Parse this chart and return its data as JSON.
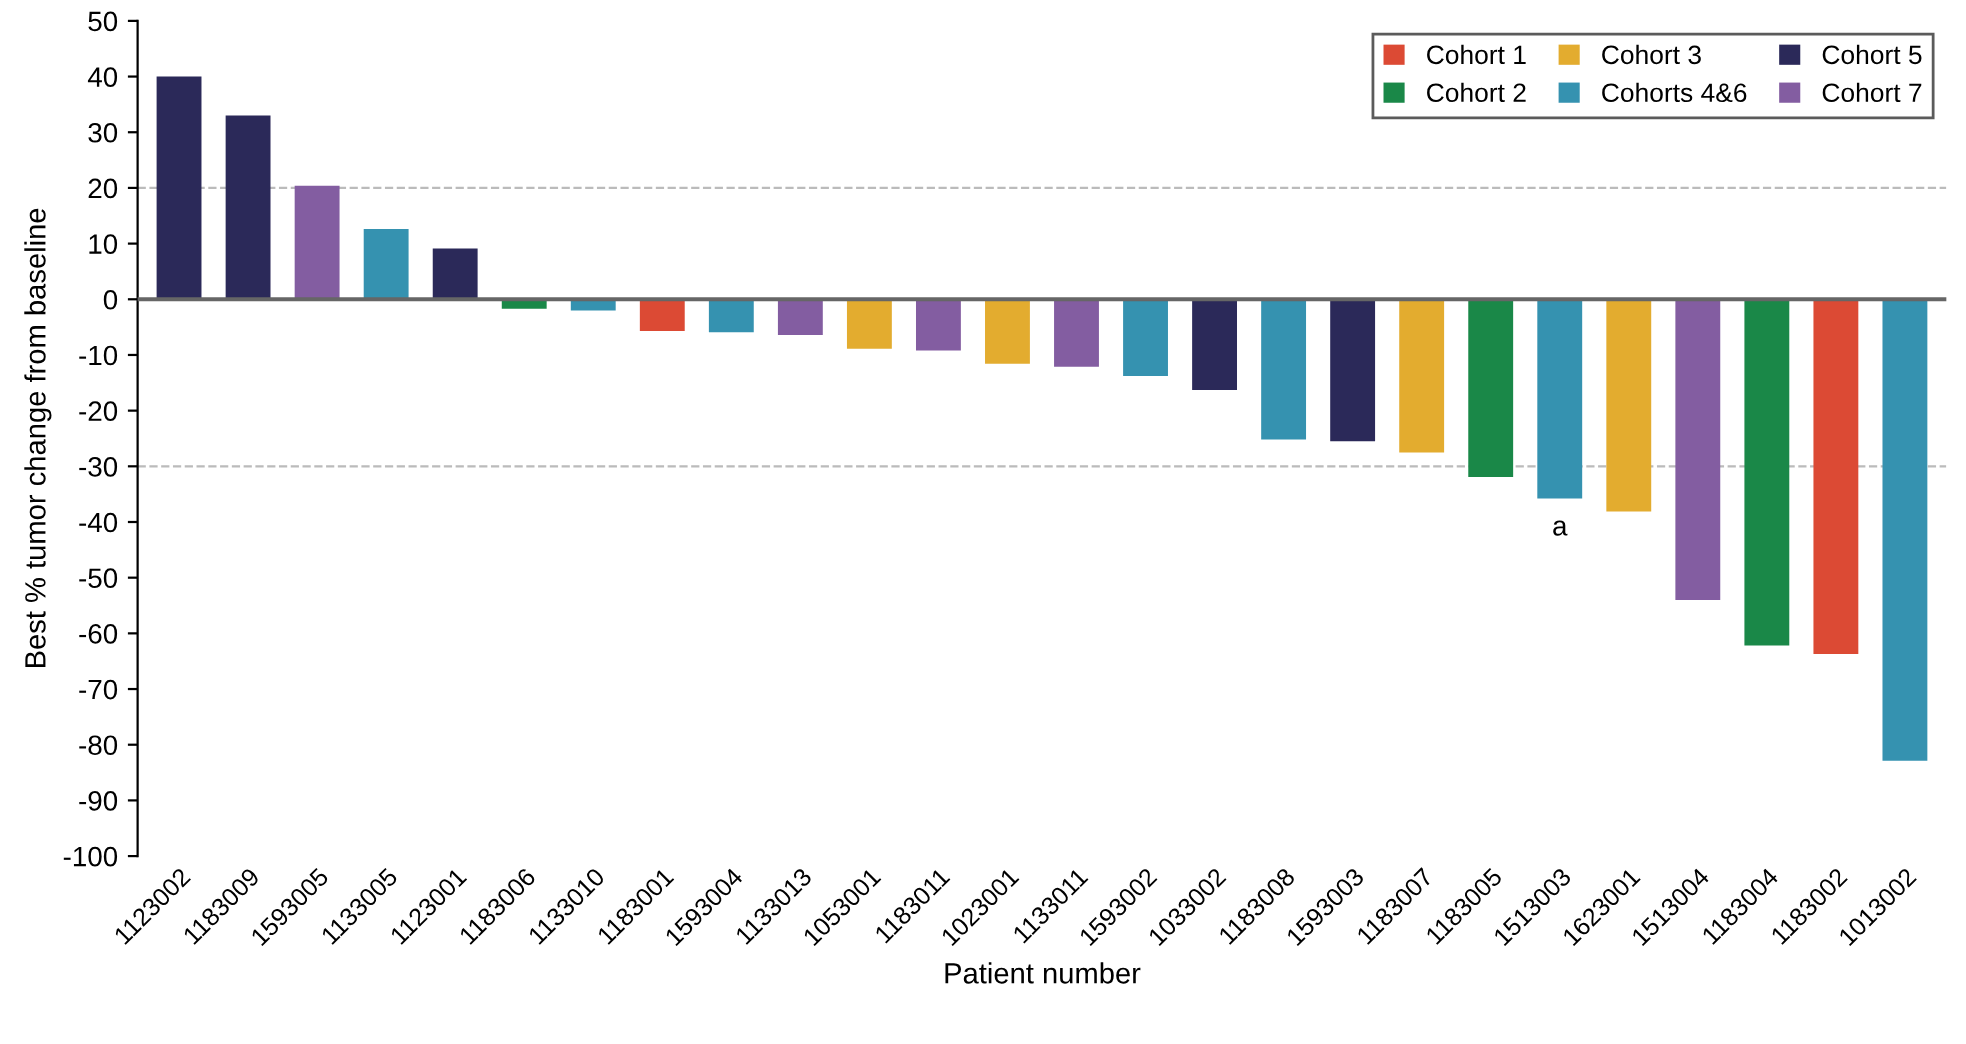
{
  "chart_data": {
    "type": "bar",
    "ylabel": "Best % tumor change from baseline",
    "xlabel": "Patient number",
    "categories": [
      "1123002",
      "1183009",
      "1593005",
      "1133005",
      "1123001",
      "1183006",
      "1133010",
      "1183001",
      "1593004",
      "1133013",
      "1053001",
      "1183011",
      "1023001",
      "1133011",
      "1593002",
      "1033002",
      "1183008",
      "1593003",
      "1183007",
      "1183005",
      "1513003",
      "1623001",
      "1513004",
      "1183004",
      "1183002",
      "1013002"
    ],
    "series": [
      {
        "name": "Cohort 1",
        "color": "#dc4a34",
        "values": [
          null,
          null,
          null,
          null,
          null,
          null,
          null,
          -5.7,
          null,
          null,
          null,
          null,
          null,
          null,
          null,
          null,
          null,
          null,
          null,
          null,
          null,
          null,
          null,
          null,
          -63.7,
          null
        ]
      },
      {
        "name": "Cohort 2",
        "color": "#1a8848",
        "values": [
          null,
          null,
          null,
          null,
          null,
          -1.7,
          null,
          null,
          null,
          null,
          null,
          null,
          null,
          null,
          null,
          null,
          null,
          null,
          null,
          -31.9,
          null,
          null,
          null,
          -62.2,
          null,
          null
        ]
      },
      {
        "name": "Cohort 3",
        "color": "#e3ac2f",
        "values": [
          null,
          null,
          null,
          null,
          null,
          null,
          null,
          null,
          null,
          null,
          -8.9,
          null,
          -11.6,
          null,
          null,
          null,
          null,
          null,
          -27.5,
          null,
          null,
          -38.1,
          null,
          null,
          null,
          null
        ]
      },
      {
        "name": "Cohorts 4&6",
        "color": "#3592b0",
        "values": [
          null,
          null,
          null,
          12.6,
          null,
          null,
          -2,
          null,
          -5.9,
          null,
          null,
          null,
          null,
          null,
          -13.8,
          null,
          -25.2,
          null,
          null,
          null,
          -35.8,
          null,
          null,
          null,
          null,
          -82.9
        ]
      },
      {
        "name": "Cohort 5",
        "color": "#2b2959",
        "values": [
          40,
          33,
          null,
          null,
          9.1,
          null,
          null,
          null,
          null,
          null,
          null,
          null,
          null,
          null,
          null,
          -16.3,
          null,
          -25.5,
          null,
          null,
          null,
          null,
          null,
          null,
          null,
          null
        ]
      },
      {
        "name": "Cohort 7",
        "color": "#835da1",
        "values": [
          null,
          null,
          20.4,
          null,
          null,
          null,
          null,
          null,
          null,
          -6.4,
          null,
          -9.2,
          null,
          -12.1,
          null,
          null,
          null,
          null,
          null,
          null,
          null,
          null,
          -54,
          null,
          null,
          null
        ]
      }
    ],
    "ylim": [
      -100,
      50
    ],
    "yticks": [
      -100,
      -90,
      -80,
      -70,
      -60,
      -50,
      -40,
      -30,
      -20,
      -10,
      0,
      10,
      20,
      30,
      40,
      50
    ],
    "ref_lines": [
      {
        "axis": "y",
        "value": 20,
        "color": "#bbbbbb",
        "line_style": "dashed"
      },
      {
        "axis": "y",
        "value": -30,
        "color": "#bbbbbb",
        "line_style": "dashed"
      }
    ],
    "annotations": [
      {
        "text": "a",
        "x": "1513003",
        "y": -35.8
      }
    ],
    "legend": "top right",
    "grid": false
  }
}
